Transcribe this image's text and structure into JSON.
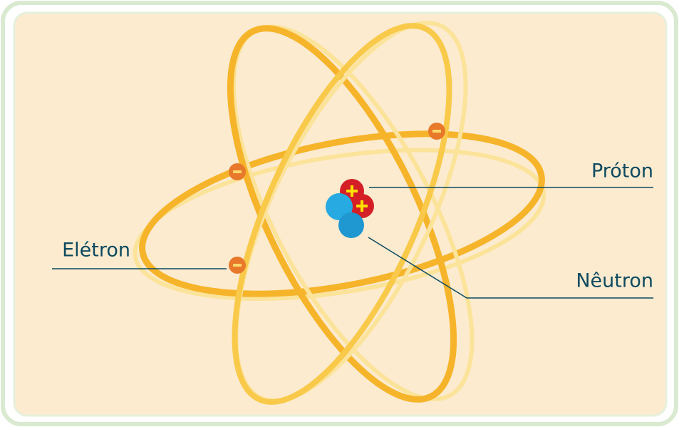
{
  "nodes": [
    {
      "label": "Próton"
    },
    {
      "label": "Elétron"
    },
    {
      "label": "Nêutron"
    }
  ]
}
